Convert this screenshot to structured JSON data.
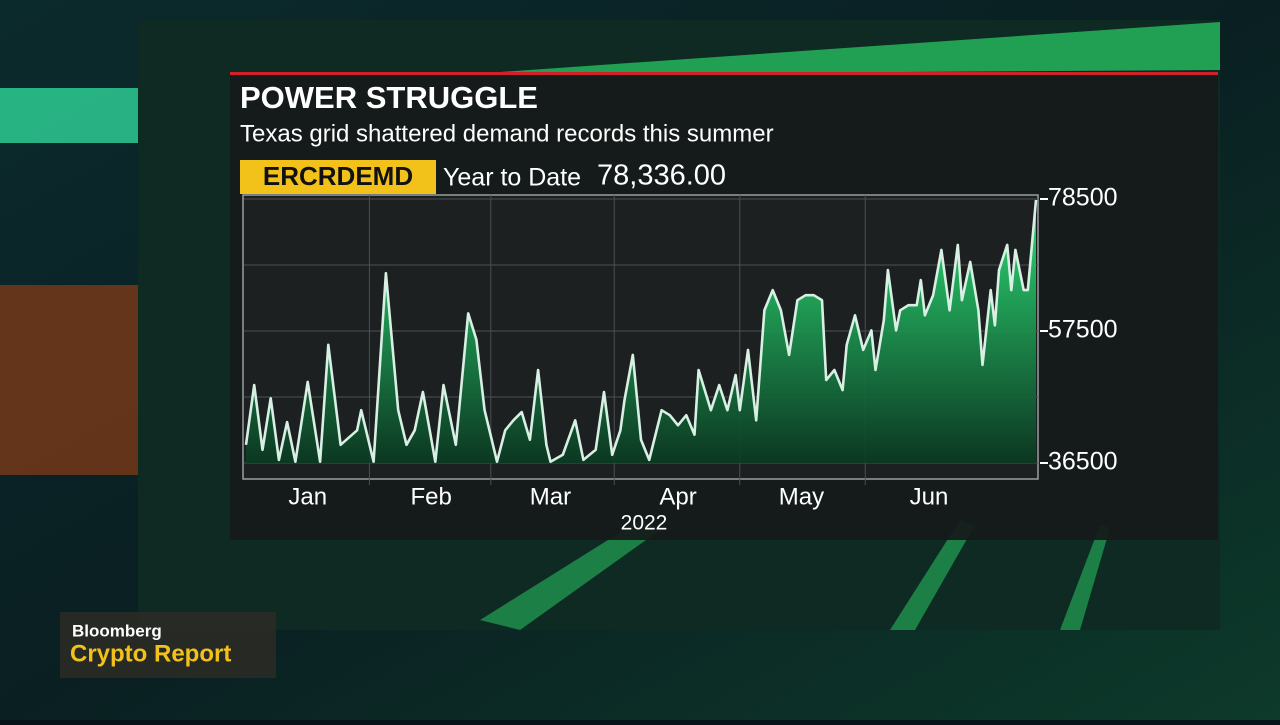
{
  "chart_data": {
    "type": "line",
    "title": "POWER STRUGGLE",
    "subtitle": "Texas grid shattered demand records this summer",
    "ticker": "ERCRDEMD",
    "period": "Year to Date",
    "last_value_label": "78,336.00",
    "xlabel": "2022",
    "x": [
      1,
      3,
      5,
      7,
      9,
      11,
      13,
      16,
      19,
      21,
      24,
      28,
      29,
      32,
      35,
      38,
      40,
      42,
      44,
      47,
      49,
      52,
      55,
      57,
      59,
      62,
      64,
      66,
      68,
      70,
      72,
      74,
      75,
      78,
      81,
      83,
      86,
      88,
      90,
      92,
      93,
      95,
      97,
      99,
      102,
      104,
      106,
      108,
      110,
      111,
      114,
      116,
      118,
      120,
      121,
      123,
      125,
      127,
      129,
      131,
      133,
      135,
      137,
      139,
      141,
      142,
      144,
      146,
      147,
      149,
      151,
      153,
      154,
      156,
      157,
      159,
      160,
      162,
      164,
      165,
      166,
      168,
      170,
      172,
      174,
      175,
      177,
      179,
      180,
      182,
      183,
      184,
      186,
      187,
      188,
      190,
      191,
      193
    ],
    "series": [
      {
        "name": "ERCRDEMD",
        "color": "#d8f0e4",
        "values": [
          39400,
          48900,
          38600,
          46800,
          37000,
          43000,
          36700,
          49400,
          36700,
          55300,
          39400,
          41700,
          44900,
          36700,
          66700,
          44900,
          39400,
          41700,
          47800,
          36700,
          48900,
          39400,
          60300,
          56100,
          44900,
          36700,
          41700,
          43300,
          44600,
          40200,
          51300,
          39400,
          36700,
          37800,
          43300,
          37000,
          38600,
          47800,
          37800,
          41700,
          46500,
          53700,
          40200,
          37000,
          44900,
          44100,
          42500,
          44100,
          41000,
          51300,
          44900,
          48900,
          44900,
          50500,
          44900,
          54500,
          43300,
          60800,
          64000,
          60800,
          53700,
          62400,
          63200,
          63200,
          62400,
          49700,
          51300,
          48100,
          55300,
          60000,
          54500,
          57600,
          51300,
          59200,
          67200,
          57600,
          60800,
          61600,
          61600,
          65600,
          60000,
          63200,
          70400,
          60800,
          71200,
          62400,
          68500,
          60800,
          52100,
          64000,
          58400,
          67200,
          71200,
          64000,
          70400,
          64000,
          64000,
          78336
        ]
      }
    ],
    "xlim": [
      1,
      193
    ],
    "xticks": [
      {
        "value": 16,
        "label": "Jan"
      },
      {
        "value": 46,
        "label": "Feb"
      },
      {
        "value": 75,
        "label": "Mar"
      },
      {
        "value": 106,
        "label": "Apr"
      },
      {
        "value": 136,
        "label": "May"
      },
      {
        "value": 167,
        "label": "Jun"
      }
    ],
    "ylim": [
      36500,
      78500
    ],
    "yticks": [
      36500,
      57500,
      78500
    ],
    "grid": true
  },
  "overlay": {
    "brand": "Bloomberg",
    "show": "Crypto Report"
  }
}
